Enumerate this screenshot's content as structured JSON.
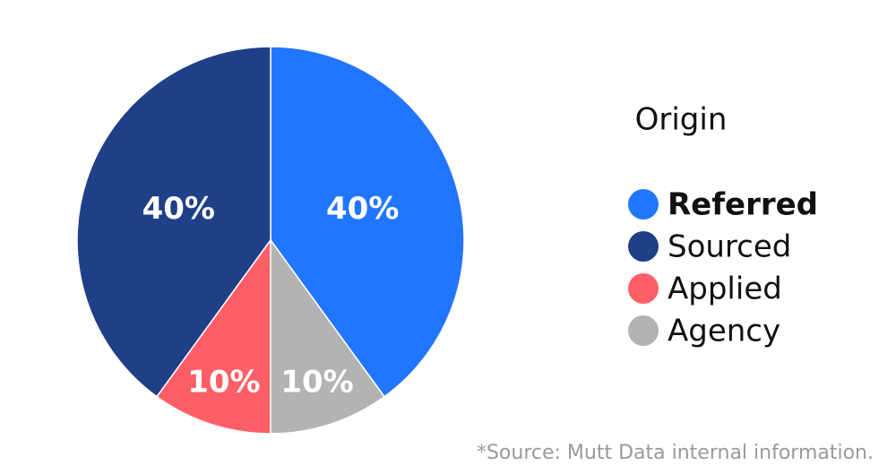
{
  "chart_data": {
    "type": "pie",
    "legend_title": "Origin",
    "categories": [
      "Referred",
      "Sourced",
      "Applied",
      "Agency"
    ],
    "values": [
      40,
      40,
      10,
      10
    ],
    "value_labels": [
      "40%",
      "40%",
      "10%",
      "10%"
    ],
    "colors": [
      "#2176ff",
      "#1f3f87",
      "#fe5f66",
      "#b3b3b3"
    ],
    "startangle": -54,
    "counterclock": true,
    "legend": "right",
    "source": "*Source: Mutt Data internal information."
  }
}
